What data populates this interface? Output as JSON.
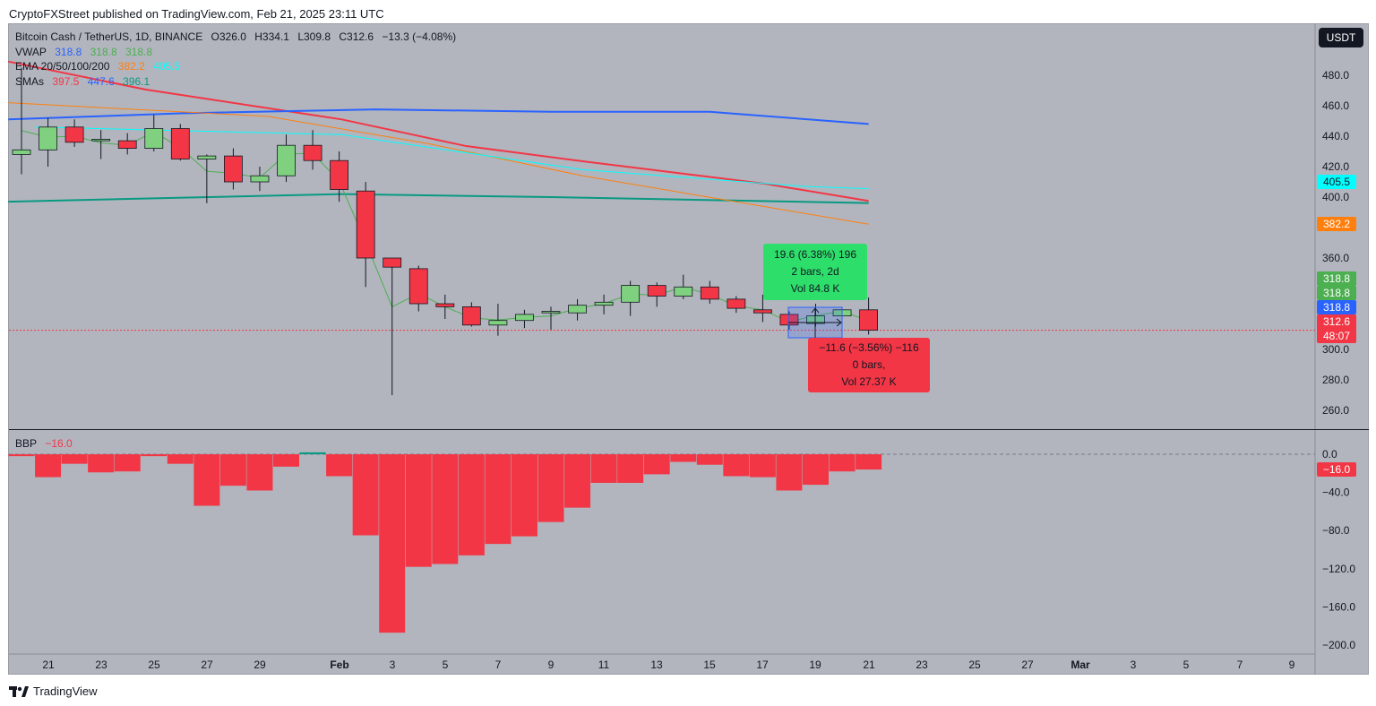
{
  "header": {
    "published": "CryptoFXStreet published on TradingView.com, Feb 21, 2025 23:11 UTC"
  },
  "legend": {
    "symbol": "Bitcoin Cash / TetherUS, 1D, BINANCE",
    "open": "O326.0",
    "high": "H334.1",
    "low": "L309.8",
    "close": "C312.6",
    "change": "−13.3 (−4.08%)",
    "vwap_label": "VWAP",
    "vwap_values": [
      "318.8",
      "318.8",
      "318.8"
    ],
    "ema_label": "EMA 20/50/100/200",
    "ema_values": [
      "382.2",
      "405.5"
    ],
    "sma_label": "SMAs",
    "sma_values": [
      "397.5",
      "447.6",
      "396.1"
    ],
    "bbp_label": "BBP",
    "bbp_value": "−16.0"
  },
  "currency_button": "USDT",
  "price_tags": [
    {
      "text": "405.5",
      "bg": "#00ffff",
      "fg": "#131722"
    },
    {
      "text": "382.2",
      "bg": "#ff7f0e",
      "fg": "#ffffff"
    },
    {
      "text": "318.8",
      "bg": "#4caf50",
      "fg": "#ffffff"
    },
    {
      "text": "318.8",
      "bg": "#4caf50",
      "fg": "#ffffff"
    },
    {
      "text": "318.8",
      "bg": "#2962ff",
      "fg": "#ffffff"
    },
    {
      "text": "312.6",
      "bg": "#f23645",
      "fg": "#ffffff"
    },
    {
      "text": "48:07",
      "bg": "#f23645",
      "fg": "#ffffff"
    },
    {
      "text": "−16.0",
      "bg": "#f23645",
      "fg": "#ffffff"
    }
  ],
  "measure": {
    "up": {
      "line1": "19.6 (6.38%) 196",
      "line2": "2 bars, 2d",
      "line3": "Vol 84.8 K"
    },
    "down": {
      "line1": "−11.6 (−3.56%) −116",
      "line2": "0 bars,",
      "line3": "Vol 27.37 K"
    }
  },
  "footer": {
    "brand": "TradingView"
  },
  "chart_data": [
    {
      "type": "candlestick",
      "title": "Bitcoin Cash / TetherUS, 1D, BINANCE",
      "ylim": [
        250,
        500
      ],
      "price_ticks": [
        "480.0",
        "460.0",
        "440.0",
        "420.0",
        "400.0",
        "360.0",
        "300.0",
        "280.0",
        "260.0"
      ],
      "price_tick_values": [
        480,
        460,
        440,
        420,
        400,
        360,
        300,
        280,
        260
      ],
      "x_ticks": [
        "21",
        "23",
        "25",
        "27",
        "29",
        "Feb",
        "3",
        "5",
        "7",
        "9",
        "11",
        "13",
        "15",
        "17",
        "19",
        "21",
        "23",
        "25",
        "27",
        "Mar",
        "3",
        "5",
        "7",
        "9"
      ],
      "dates": [
        "Jan 20",
        "Jan 21",
        "Jan 22",
        "Jan 23",
        "Jan 24",
        "Jan 25",
        "Jan 26",
        "Jan 27",
        "Jan 28",
        "Jan 29",
        "Jan 30",
        "Jan 31",
        "Feb 1",
        "Feb 2",
        "Feb 3",
        "Feb 4",
        "Feb 5",
        "Feb 6",
        "Feb 7",
        "Feb 8",
        "Feb 9",
        "Feb 10",
        "Feb 11",
        "Feb 12",
        "Feb 13",
        "Feb 14",
        "Feb 15",
        "Feb 16",
        "Feb 17",
        "Feb 18",
        "Feb 19",
        "Feb 20",
        "Feb 21"
      ],
      "ohlc": [
        [
          428,
          485,
          415,
          431
        ],
        [
          431,
          452,
          420,
          446
        ],
        [
          446,
          451,
          433,
          436
        ],
        [
          437,
          444,
          425,
          438
        ],
        [
          437,
          442,
          428,
          432
        ],
        [
          432,
          454,
          430,
          445
        ],
        [
          445,
          448,
          424,
          425
        ],
        [
          425,
          428,
          396,
          427
        ],
        [
          427,
          432,
          405,
          410
        ],
        [
          410,
          420,
          404,
          414
        ],
        [
          414,
          441,
          410,
          434
        ],
        [
          434,
          444,
          418,
          424
        ],
        [
          424,
          430,
          397,
          405
        ],
        [
          404,
          410,
          341,
          360
        ],
        [
          360,
          360,
          270,
          354
        ],
        [
          353,
          355,
          325,
          330
        ],
        [
          330,
          336,
          320,
          328
        ],
        [
          328,
          331,
          315,
          316
        ],
        [
          316,
          330,
          309,
          319
        ],
        [
          319,
          326,
          314,
          323
        ],
        [
          324,
          328,
          313,
          325
        ],
        [
          324,
          333,
          319,
          329
        ],
        [
          329,
          336,
          323,
          331
        ],
        [
          331,
          345,
          322,
          342
        ],
        [
          342,
          344,
          328,
          335
        ],
        [
          335,
          349,
          333,
          341
        ],
        [
          341,
          345,
          330,
          333
        ],
        [
          333,
          335,
          324,
          327
        ],
        [
          326,
          336,
          318,
          324
        ],
        [
          323,
          325,
          313,
          316
        ],
        [
          317,
          330,
          315,
          322
        ],
        [
          322,
          328,
          321,
          326
        ],
        [
          326,
          334.1,
          309.8,
          312.6
        ]
      ],
      "lines": [
        {
          "name": "SMA red",
          "color": "#f23645",
          "width": 2,
          "points": [
            [
              -0.5,
              489
            ],
            [
              4.7,
              470.6
            ],
            [
              12.1,
              451
            ],
            [
              16.8,
              433.5
            ],
            [
              21.2,
              423.5
            ],
            [
              28,
              409
            ],
            [
              32,
              397.5
            ]
          ]
        },
        {
          "name": "SMA blue",
          "color": "#2962ff",
          "width": 2,
          "points": [
            [
              -0.5,
              451
            ],
            [
              6,
              455
            ],
            [
              13.4,
              457.6
            ],
            [
              20,
              456
            ],
            [
              26,
              456
            ],
            [
              32,
              448
            ]
          ]
        },
        {
          "name": "SMA teal",
          "color": "#089981",
          "width": 2,
          "points": [
            [
              -0.5,
              397
            ],
            [
              12.1,
              402
            ],
            [
              20,
              400
            ],
            [
              32,
              396.1
            ]
          ]
        },
        {
          "name": "EMA orange",
          "color": "#ff7f0e",
          "width": 1,
          "points": [
            [
              -0.5,
              462
            ],
            [
              9.3,
              453
            ],
            [
              15.4,
              435
            ],
            [
              21.2,
              414
            ],
            [
              26.3,
              399
            ],
            [
              32,
              382.2
            ]
          ]
        },
        {
          "name": "EMA cyan",
          "color": "#00ffff",
          "width": 1,
          "points": [
            [
              0.5,
              446
            ],
            [
              12.1,
              441
            ],
            [
              21.2,
              418
            ],
            [
              29.6,
              407
            ],
            [
              32,
              405.5
            ]
          ]
        }
      ]
    },
    {
      "type": "bar",
      "title": "BBP",
      "ylim": [
        -210,
        10
      ],
      "y_ticks": [
        "0.0",
        "−40.0",
        "−80.0",
        "−120.0",
        "−160.0",
        "−200.0"
      ],
      "y_tick_values": [
        0,
        -40,
        -80,
        -120,
        -160,
        -200
      ],
      "values": [
        -2,
        -24,
        -10,
        -19,
        -18,
        -2,
        -10,
        -54,
        -33,
        -38,
        -13,
        2,
        -23,
        -85,
        -187,
        -118,
        -115,
        -106,
        -94,
        -86,
        -71,
        -56,
        -30,
        -30,
        -21,
        -8,
        -11,
        -23,
        -24,
        -38,
        -32,
        -18,
        -16
      ]
    }
  ],
  "colors": {
    "up": "#7fd17f",
    "down": "#f23645",
    "bg": "#b2b5be",
    "vwap": "#4caf50"
  }
}
